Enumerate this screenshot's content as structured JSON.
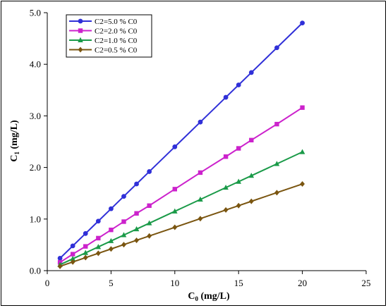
{
  "chart_data": {
    "type": "line",
    "xlabel_main": "C",
    "xlabel_sub": "0",
    "xlabel_unit": " (mg/L)",
    "ylabel_main": "C",
    "ylabel_sub": "1",
    "ylabel_unit": " (mg/L)",
    "xlim": [
      0,
      25
    ],
    "ylim": [
      0,
      5.0
    ],
    "xticks": [
      {
        "value": 0,
        "label": "0"
      },
      {
        "value": 5,
        "label": "5"
      },
      {
        "value": 10,
        "label": "10"
      },
      {
        "value": 15,
        "label": "15"
      },
      {
        "value": 20,
        "label": "20"
      },
      {
        "value": 25,
        "label": "25"
      }
    ],
    "yticks": [
      {
        "value": 0,
        "label": "0.0"
      },
      {
        "value": 1,
        "label": "1.0"
      },
      {
        "value": 2,
        "label": "2.0"
      },
      {
        "value": 3,
        "label": "3.0"
      },
      {
        "value": 4,
        "label": "4.0"
      },
      {
        "value": 5,
        "label": "5.0"
      }
    ],
    "grid": false,
    "legend_position": "top-left",
    "x": [
      1,
      2,
      3,
      4,
      5,
      6,
      7,
      8,
      10,
      12,
      14,
      15,
      16,
      18,
      20
    ],
    "series": [
      {
        "name": "C2=5.0 % C0",
        "color": "#3030d8",
        "marker": "circle",
        "values": [
          0.24,
          0.48,
          0.72,
          0.96,
          1.2,
          1.44,
          1.68,
          1.92,
          2.4,
          2.88,
          3.36,
          3.6,
          3.84,
          4.32,
          4.8
        ]
      },
      {
        "name": "C2=2.0 % C0",
        "color": "#cc22cc",
        "marker": "square",
        "values": [
          0.16,
          0.32,
          0.47,
          0.63,
          0.79,
          0.95,
          1.11,
          1.26,
          1.58,
          1.9,
          2.21,
          2.37,
          2.53,
          2.84,
          3.16
        ]
      },
      {
        "name": "C2=1.0 % C0",
        "color": "#1a9a48",
        "marker": "triangle",
        "values": [
          0.115,
          0.23,
          0.345,
          0.46,
          0.575,
          0.69,
          0.805,
          0.92,
          1.15,
          1.38,
          1.61,
          1.725,
          1.84,
          2.07,
          2.3
        ]
      },
      {
        "name": "C2=0.5 % C0",
        "color": "#7a5510",
        "marker": "diamond",
        "values": [
          0.084,
          0.168,
          0.252,
          0.336,
          0.42,
          0.504,
          0.588,
          0.672,
          0.84,
          1.008,
          1.176,
          1.26,
          1.344,
          1.512,
          1.68
        ]
      }
    ]
  }
}
